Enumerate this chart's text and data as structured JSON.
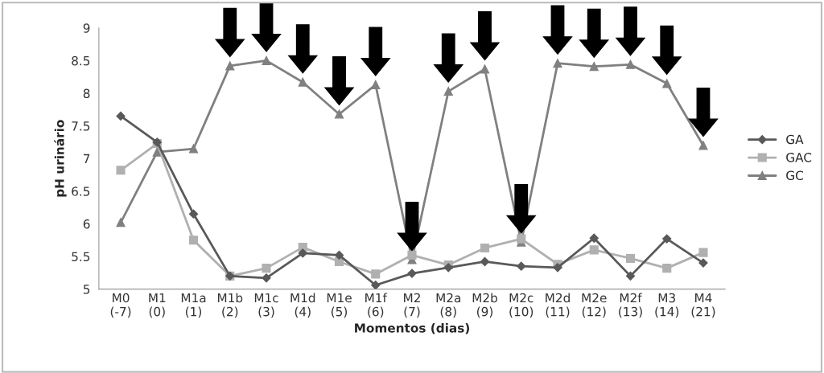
{
  "chart_data": {
    "type": "line",
    "xlabel": "Momentos (dias)",
    "ylabel": "pH urinário",
    "categories": [
      "M0\n(-7)",
      "M1\n(0)",
      "M1a\n(1)",
      "M1b\n(2)",
      "M1c\n(3)",
      "M1d\n(4)",
      "M1e\n(5)",
      "M1f\n(6)",
      "M2\n(7)",
      "M2a\n(8)",
      "M2b\n(9)",
      "M2c\n(10)",
      "M2d\n(11)",
      "M2e\n(12)",
      "M2f\n(13)",
      "M3\n(14)",
      "M4\n(21)"
    ],
    "series": [
      {
        "name": "GA",
        "color": "#595959",
        "marker": "diamond",
        "values": [
          7.65,
          7.25,
          6.15,
          5.2,
          5.17,
          5.55,
          5.52,
          5.06,
          5.24,
          5.33,
          5.42,
          5.35,
          5.33,
          5.78,
          5.2,
          5.77,
          5.4
        ]
      },
      {
        "name": "GAC",
        "color": "#b0b0b0",
        "marker": "square",
        "values": [
          6.82,
          7.23,
          5.75,
          5.2,
          5.32,
          5.64,
          5.42,
          5.23,
          5.52,
          5.37,
          5.63,
          5.77,
          5.38,
          5.6,
          5.47,
          5.32,
          5.56
        ]
      },
      {
        "name": "GC",
        "color": "#808080",
        "marker": "triangle",
        "values": [
          6.02,
          7.1,
          7.15,
          8.42,
          8.5,
          8.17,
          7.68,
          8.13,
          5.45,
          8.03,
          8.37,
          5.72,
          8.46,
          8.41,
          8.44,
          8.15,
          7.2
        ]
      }
    ],
    "ylim": [
      5,
      9
    ],
    "yticks": [
      5,
      5.5,
      6,
      6.5,
      7,
      7.5,
      8,
      8.5,
      9
    ],
    "grid": false,
    "legend": "right",
    "line_style": "solid"
  }
}
